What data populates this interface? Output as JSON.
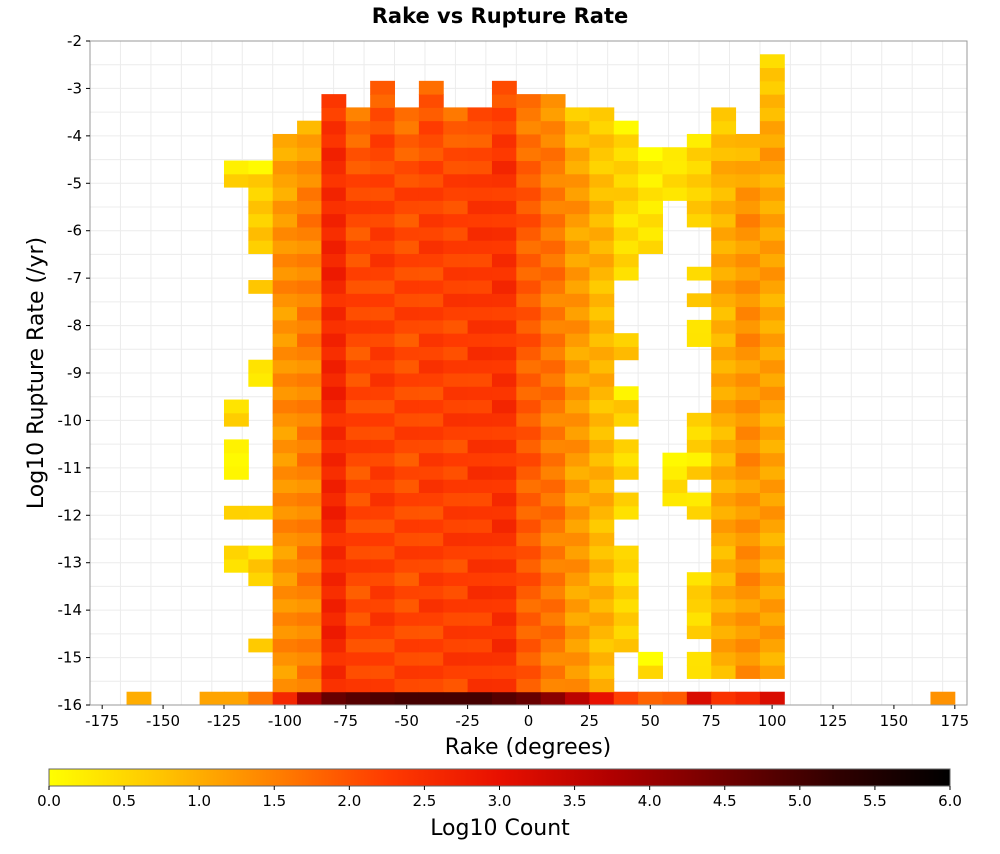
{
  "chart_data": {
    "type": "heatmap",
    "title": "Rake vs Rupture Rate",
    "xlabel": "Rake (degrees)",
    "ylabel": "Log10 Rupture Rate (/yr)",
    "xlim": [
      -180,
      180
    ],
    "ylim": [
      -16,
      -2
    ],
    "x_ticks": [
      -175,
      -150,
      -125,
      -100,
      -75,
      -50,
      -25,
      0,
      25,
      50,
      75,
      100,
      125,
      150,
      175
    ],
    "y_ticks": [
      -2,
      -3,
      -4,
      -5,
      -6,
      -7,
      -8,
      -9,
      -10,
      -11,
      -12,
      -13,
      -14,
      -15,
      -16
    ],
    "bin_width_x": 10,
    "bin_height_y": 0.28,
    "grid": true,
    "colorbar": {
      "label": "Log10 Count",
      "min": 0.0,
      "max": 6.0,
      "ticks": [
        "0.0",
        "0.5",
        "1.0",
        "1.5",
        "2.0",
        "2.5",
        "3.0",
        "3.5",
        "4.0",
        "4.5",
        "5.0",
        "5.5",
        "6.0"
      ],
      "colors": [
        "#ffff00",
        "#ffc400",
        "#ff8000",
        "#ff3b00",
        "#e81000",
        "#b00000",
        "#700000",
        "#300000",
        "#000000"
      ]
    },
    "columns": [
      {
        "x": -160,
        "ranges": [],
        "bottom": 1.0
      },
      {
        "x": -130,
        "ranges": [],
        "bottom": 1.1
      },
      {
        "x": -120,
        "ranges": [
          [
            -5.2,
            -4.6,
            0.4
          ],
          [
            -13.3,
            -12.7,
            0.6
          ],
          [
            -12.1,
            -11.8,
            0.4
          ],
          [
            -11.2,
            -10.8,
            0.3
          ],
          [
            -10.6,
            -10.3,
            0.4
          ],
          [
            -10.1,
            -9.6,
            0.4
          ]
        ],
        "bottom": 1.1
      },
      {
        "x": -110,
        "ranges": [
          [
            -6.5,
            -4.6,
            0.6
          ],
          [
            -7.4,
            -7.1,
            0.9
          ],
          [
            -9.4,
            -8.8,
            0.5
          ],
          [
            -12.1,
            -11.8,
            0.5
          ],
          [
            -13.6,
            -12.7,
            0.6
          ],
          [
            -15.0,
            -14.7,
            0.9
          ]
        ],
        "bottom": 1.6
      },
      {
        "x": -100,
        "ranges": [
          [
            -15.6,
            -3.9,
            1.3
          ]
        ],
        "bottom": 2.6
      },
      {
        "x": -90,
        "ranges": [
          [
            -15.6,
            -3.6,
            1.5
          ]
        ],
        "bottom": 3.9
      },
      {
        "x": -80,
        "ranges": [
          [
            -15.6,
            -3.0,
            2.6
          ]
        ],
        "bottom": 4.6
      },
      {
        "x": -70,
        "ranges": [
          [
            -15.6,
            -3.3,
            2.1
          ]
        ],
        "bottom": 4.8
      },
      {
        "x": -60,
        "ranges": [
          [
            -15.6,
            -2.7,
            2.2
          ]
        ],
        "bottom": 4.9
      },
      {
        "x": -50,
        "ranges": [
          [
            -15.6,
            -3.5,
            2.1
          ]
        ],
        "bottom": 5.0
      },
      {
        "x": -40,
        "ranges": [
          [
            -15.6,
            -2.7,
            2.2
          ]
        ],
        "bottom": 5.0
      },
      {
        "x": -30,
        "ranges": [
          [
            -15.6,
            -3.5,
            2.2
          ]
        ],
        "bottom": 5.0
      },
      {
        "x": -20,
        "ranges": [
          [
            -15.6,
            -3.3,
            2.3
          ]
        ],
        "bottom": 5.0
      },
      {
        "x": -10,
        "ranges": [
          [
            -15.6,
            -2.7,
            2.4
          ]
        ],
        "bottom": 4.8
      },
      {
        "x": 0,
        "ranges": [
          [
            -15.6,
            -3.0,
            1.9
          ]
        ],
        "bottom": 4.6
      },
      {
        "x": 10,
        "ranges": [
          [
            -15.6,
            -3.0,
            1.6
          ]
        ],
        "bottom": 4.2
      },
      {
        "x": 20,
        "ranges": [
          [
            -15.6,
            -3.3,
            1.2
          ]
        ],
        "bottom": 3.6
      },
      {
        "x": 30,
        "ranges": [
          [
            -15.6,
            -3.3,
            0.9
          ]
        ],
        "bottom": 3.0
      },
      {
        "x": 40,
        "ranges": [
          [
            -7.0,
            -3.6,
            0.5
          ],
          [
            -8.8,
            -8.2,
            0.8
          ],
          [
            -10.0,
            -9.4,
            0.6
          ],
          [
            -11.2,
            -10.3,
            0.6
          ],
          [
            -12.1,
            -11.5,
            0.5
          ],
          [
            -15.0,
            -12.7,
            0.6
          ]
        ],
        "bottom": 2.2
      },
      {
        "x": 50,
        "ranges": [
          [
            -6.5,
            -4.3,
            0.3
          ],
          [
            -15.3,
            -15.0,
            0.4
          ]
        ],
        "bottom": 1.8
      },
      {
        "x": 60,
        "ranges": [
          [
            -5.3,
            -4.3,
            0.3
          ],
          [
            -11.8,
            -10.8,
            0.4
          ],
          [
            -15.9,
            -15.6,
            0.4
          ]
        ],
        "bottom": 1.9
      },
      {
        "x": 70,
        "ranges": [
          [
            -5.9,
            -3.9,
            0.6
          ],
          [
            -7.1,
            -6.8,
            0.4
          ],
          [
            -7.7,
            -7.4,
            0.6
          ],
          [
            -8.3,
            -8.0,
            0.4
          ],
          [
            -10.6,
            -9.8,
            0.5
          ],
          [
            -11.2,
            -10.8,
            0.5
          ],
          [
            -12.1,
            -11.5,
            0.5
          ],
          [
            -13.6,
            -13.2,
            0.4
          ],
          [
            -14.7,
            -13.5,
            0.6
          ],
          [
            -15.3,
            -15.0,
            0.5
          ]
        ],
        "bottom": 3.2
      },
      {
        "x": 80,
        "ranges": [
          [
            -15.3,
            -3.3,
            1.0
          ]
        ],
        "bottom": 2.4
      },
      {
        "x": 90,
        "ranges": [
          [
            -15.3,
            -3.9,
            1.3
          ]
        ],
        "bottom": 2.6
      },
      {
        "x": 100,
        "ranges": [
          [
            -15.3,
            -2.4,
            1.1
          ]
        ],
        "bottom": 3.2
      },
      {
        "x": 170,
        "ranges": [],
        "bottom": 1.3
      }
    ]
  }
}
